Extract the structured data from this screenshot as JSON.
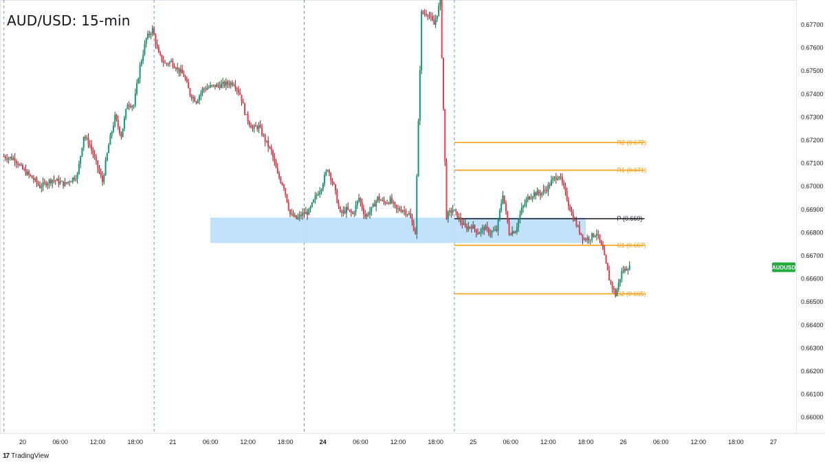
{
  "chart_data": {
    "type": "candlestick",
    "title": "AUD/USD: 15-min",
    "symbol_badge": "AUDUSD",
    "last_price": 0.6665,
    "ylim": [
      0.6595,
      0.6775
    ],
    "y_ticks": [
      "0.67700",
      "0.67600",
      "0.67500",
      "0.67400",
      "0.67300",
      "0.67200",
      "0.67100",
      "0.67000",
      "0.66900",
      "0.66800",
      "0.66700",
      "0.66600",
      "0.66500",
      "0.66400",
      "0.66300",
      "0.66200",
      "0.66100",
      "0.66000"
    ],
    "x_ticks": [
      {
        "label": "20",
        "bold": false,
        "hour": 0
      },
      {
        "label": "06:00",
        "bold": false,
        "hour": 6
      },
      {
        "label": "12:00",
        "bold": false,
        "hour": 12
      },
      {
        "label": "18:00",
        "bold": false,
        "hour": 18
      },
      {
        "label": "21",
        "bold": false,
        "hour": 24
      },
      {
        "label": "06:00",
        "bold": false,
        "hour": 30
      },
      {
        "label": "12:00",
        "bold": false,
        "hour": 36
      },
      {
        "label": "18:00",
        "bold": false,
        "hour": 42
      },
      {
        "label": "24",
        "bold": true,
        "hour": 48
      },
      {
        "label": "06:00",
        "bold": false,
        "hour": 54
      },
      {
        "label": "12:00",
        "bold": false,
        "hour": 60
      },
      {
        "label": "18:00",
        "bold": false,
        "hour": 66
      },
      {
        "label": "25",
        "bold": false,
        "hour": 72
      },
      {
        "label": "06:00",
        "bold": false,
        "hour": 78
      },
      {
        "label": "12:00",
        "bold": false,
        "hour": 84
      },
      {
        "label": "18:00",
        "bold": false,
        "hour": 90
      },
      {
        "label": "26",
        "bold": false,
        "hour": 96
      },
      {
        "label": "06:00",
        "bold": false,
        "hour": 102
      },
      {
        "label": "12:00",
        "bold": false,
        "hour": 108
      },
      {
        "label": "18:00",
        "bold": false,
        "hour": 114
      },
      {
        "label": "27",
        "bold": false,
        "hour": 120
      }
    ],
    "session_separators_hour": [
      -3,
      21,
      45,
      69
    ],
    "demand_zone": {
      "y_top": 0.66865,
      "y_bottom": 0.66755,
      "x_start_hour": 30,
      "x_end_hour": 90
    },
    "pivot_levels": [
      {
        "name": "R2 (0.672)",
        "value": 0.6719,
        "color": "#ff9800"
      },
      {
        "name": "R1 (0.671)",
        "value": 0.6707,
        "color": "#ff9800"
      },
      {
        "name": "P (0.669)",
        "value": 0.6686,
        "color": "#131722"
      },
      {
        "name": "S1 (0.667)",
        "value": 0.66745,
        "color": "#ff9800"
      },
      {
        "name": "S2 (0.665)",
        "value": 0.66535,
        "color": "#ff9800"
      }
    ],
    "pivot_x_start_hour": 69,
    "pivot_label_hour": 95,
    "up_color": "#089981",
    "down_color": "#f23645",
    "wick_up_color": "#1b5e20",
    "wick_down_color": "#801922",
    "path_anchors": [
      [
        -3,
        0.6713
      ],
      [
        -1,
        0.6712
      ],
      [
        0,
        0.6708
      ],
      [
        2,
        0.6703
      ],
      [
        3,
        0.67
      ],
      [
        5,
        0.6703
      ],
      [
        7,
        0.6701
      ],
      [
        9,
        0.6705
      ],
      [
        10,
        0.6722
      ],
      [
        11,
        0.6718
      ],
      [
        12,
        0.671
      ],
      [
        13,
        0.6702
      ],
      [
        14,
        0.6718
      ],
      [
        15,
        0.673
      ],
      [
        16,
        0.6722
      ],
      [
        17,
        0.6736
      ],
      [
        18,
        0.6735
      ],
      [
        19,
        0.6752
      ],
      [
        20,
        0.6764
      ],
      [
        21,
        0.6768
      ],
      [
        22,
        0.6757
      ],
      [
        23,
        0.6753
      ],
      [
        24,
        0.6754
      ],
      [
        26,
        0.6748
      ],
      [
        27,
        0.674
      ],
      [
        28,
        0.6737
      ],
      [
        29,
        0.6742
      ],
      [
        30,
        0.6743
      ],
      [
        32,
        0.6744
      ],
      [
        34,
        0.6745
      ],
      [
        35,
        0.674
      ],
      [
        36,
        0.673
      ],
      [
        37,
        0.6725
      ],
      [
        38,
        0.6726
      ],
      [
        39,
        0.672
      ],
      [
        40,
        0.6715
      ],
      [
        41,
        0.6705
      ],
      [
        42,
        0.67
      ],
      [
        43,
        0.6688
      ],
      [
        44,
        0.6686
      ],
      [
        45,
        0.6688
      ],
      [
        46,
        0.6689
      ],
      [
        47,
        0.6695
      ],
      [
        48,
        0.67
      ],
      [
        49,
        0.6708
      ],
      [
        50,
        0.67
      ],
      [
        51,
        0.6688
      ],
      [
        52,
        0.669
      ],
      [
        53,
        0.6688
      ],
      [
        54,
        0.6695
      ],
      [
        55,
        0.6687
      ],
      [
        56,
        0.669
      ],
      [
        57,
        0.6695
      ],
      [
        58,
        0.6693
      ],
      [
        59,
        0.6694
      ],
      [
        60,
        0.669
      ],
      [
        61,
        0.669
      ],
      [
        62,
        0.6688
      ],
      [
        63,
        0.668
      ],
      [
        64,
        0.6775
      ],
      [
        65,
        0.6775
      ],
      [
        66,
        0.677
      ],
      [
        67,
        0.678
      ],
      [
        68,
        0.6687
      ],
      [
        69,
        0.669
      ],
      [
        70,
        0.6686
      ],
      [
        71,
        0.6682
      ],
      [
        72,
        0.6683
      ],
      [
        73,
        0.668
      ],
      [
        74,
        0.6682
      ],
      [
        75,
        0.668
      ],
      [
        76,
        0.6681
      ],
      [
        77,
        0.6697
      ],
      [
        78,
        0.668
      ],
      [
        79,
        0.6681
      ],
      [
        80,
        0.669
      ],
      [
        81,
        0.6695
      ],
      [
        82,
        0.6697
      ],
      [
        83,
        0.6697
      ],
      [
        84,
        0.6699
      ],
      [
        85,
        0.6703
      ],
      [
        86,
        0.6705
      ],
      [
        87,
        0.6697
      ],
      [
        88,
        0.6688
      ],
      [
        89,
        0.6682
      ],
      [
        90,
        0.6677
      ],
      [
        91,
        0.6678
      ],
      [
        92,
        0.668
      ],
      [
        93,
        0.6672
      ],
      [
        94,
        0.666
      ],
      [
        95,
        0.6653
      ],
      [
        96,
        0.6663
      ],
      [
        97,
        0.6665
      ]
    ]
  },
  "footer": {
    "brand": "TradingView",
    "logo_glyph": "17"
  }
}
